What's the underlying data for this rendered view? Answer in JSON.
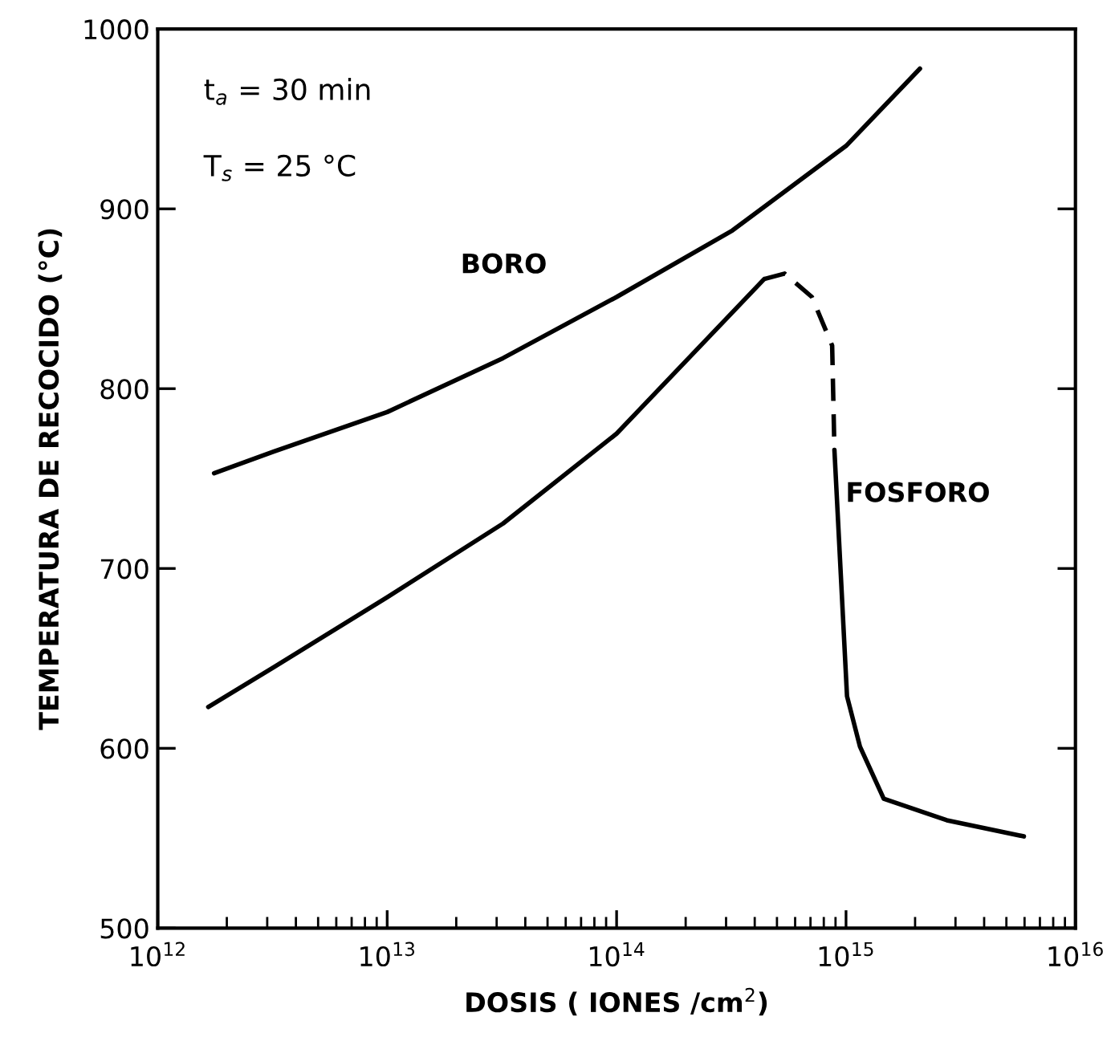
{
  "chart_data": {
    "type": "line",
    "xlabel": "DOSIS ( IONES /cm$^{2}$)",
    "ylabel": "TEMPERATURA DE RECOCIDO (°C)",
    "annotations": [
      "t$_{a}$ = 30 min",
      "T$_{s}$ = 25 °C"
    ],
    "log": "x",
    "xlim": [
      1000000000000.0,
      1e+16
    ],
    "xticks": [
      {
        "value": 1000000000000.0,
        "label": "10$^{12}$"
      },
      {
        "value": 10000000000000.0,
        "label": "10$^{13}$"
      },
      {
        "value": 100000000000000.0,
        "label": "10$^{14}$"
      },
      {
        "value": 1000000000000000.0,
        "label": "10$^{15}$"
      },
      {
        "value": 1e+16,
        "label": "10$^{16}$"
      }
    ],
    "ylim": [
      500,
      1000
    ],
    "yticks": [
      500,
      600,
      700,
      800,
      900,
      1000
    ],
    "grid": false,
    "legend": false,
    "series": [
      {
        "name": "BORO",
        "color": "#000000",
        "line_style": "solid",
        "x": [
          1760000000000.0,
          3200000000000.0,
          10000000000000.0,
          32000000000000.0,
          100000000000000.0,
          320000000000000.0,
          1000000000000000.0,
          2100000000000000.0
        ],
        "values": [
          753,
          765,
          787,
          817,
          851,
          888,
          935,
          978
        ]
      },
      {
        "color": "#000000",
        "line_style": "solid",
        "x": [
          1660000000000.0,
          3200000000000.0,
          10000000000000.0,
          32000000000000.0,
          100000000000000.0,
          440000000000000.0
        ],
        "values": [
          623,
          645,
          684,
          725,
          775,
          861
        ]
      },
      {
        "color": "#000000",
        "line_style": "dashed",
        "x": [
          440000000000000.0,
          540000000000000.0,
          710000000000000.0,
          870000000000000.0,
          890000000000000.0
        ],
        "values": [
          861,
          864,
          851,
          824,
          766
        ]
      },
      {
        "name": "FOSFORO",
        "color": "#000000",
        "line_style": "solid",
        "x": [
          890000000000000.0,
          1010000000000000.0,
          1150000000000000.0,
          1460000000000000.0,
          2750000000000000.0,
          5960000000000000.0
        ],
        "values": [
          766,
          629,
          601,
          572,
          560,
          551
        ]
      }
    ]
  }
}
